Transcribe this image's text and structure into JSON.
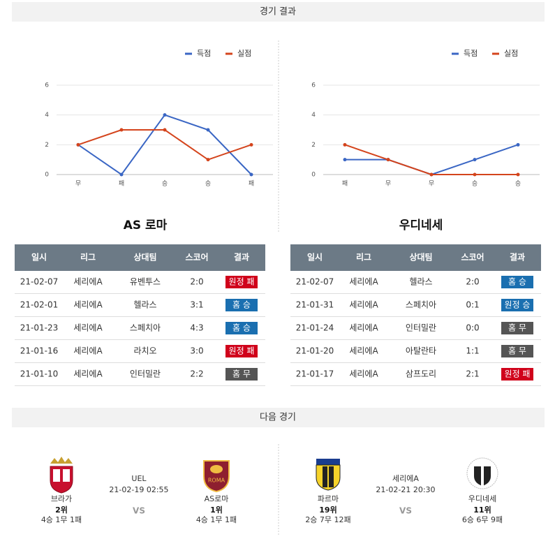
{
  "header": {
    "results_title": "경기 결과",
    "next_title": "다음 경기"
  },
  "chart_data": [
    {
      "type": "line",
      "categories": [
        "무",
        "패",
        "승",
        "승",
        "패"
      ],
      "series": [
        {
          "name": "득점",
          "color": "#3a66c4",
          "values": [
            2,
            0,
            4,
            3,
            0
          ]
        },
        {
          "name": "실점",
          "color": "#d4441c",
          "values": [
            2,
            3,
            3,
            1,
            2
          ]
        }
      ],
      "ylim": [
        0,
        6
      ],
      "yticks": [
        0,
        2,
        4,
        6
      ],
      "grid": true,
      "legend": "top-right"
    },
    {
      "type": "line",
      "categories": [
        "패",
        "무",
        "무",
        "승",
        "승"
      ],
      "series": [
        {
          "name": "득점",
          "color": "#3a66c4",
          "values": [
            1,
            1,
            0,
            1,
            2
          ]
        },
        {
          "name": "실점",
          "color": "#d4441c",
          "values": [
            2,
            1,
            0,
            0,
            0
          ]
        }
      ],
      "ylim": [
        0,
        6
      ],
      "yticks": [
        0,
        2,
        4,
        6
      ],
      "grid": true,
      "legend": "top-right"
    }
  ],
  "teams": [
    {
      "name": "AS 로마",
      "table": {
        "columns": [
          "일시",
          "리그",
          "상대팀",
          "스코어",
          "결과"
        ],
        "rows": [
          [
            "21-02-07",
            "세리에A",
            "유벤투스",
            "2:0",
            "원정 패"
          ],
          [
            "21-02-01",
            "세리에A",
            "헬라스",
            "3:1",
            "홈 승"
          ],
          [
            "21-01-23",
            "세리에A",
            "스페치아",
            "4:3",
            "홈 승"
          ],
          [
            "21-01-16",
            "세리에A",
            "라치오",
            "3:0",
            "원정 패"
          ],
          [
            "21-01-10",
            "세리에A",
            "인터밀란",
            "2:2",
            "홈 무"
          ]
        ],
        "badge_colors": [
          "#d0021b",
          "#1a6fb0",
          "#1a6fb0",
          "#d0021b",
          "#555555"
        ]
      }
    },
    {
      "name": "우디네세",
      "table": {
        "columns": [
          "일시",
          "리그",
          "상대팀",
          "스코어",
          "결과"
        ],
        "rows": [
          [
            "21-02-07",
            "세리에A",
            "헬라스",
            "2:0",
            "홈 승"
          ],
          [
            "21-01-31",
            "세리에A",
            "스페치아",
            "0:1",
            "원정 승"
          ],
          [
            "21-01-24",
            "세리에A",
            "인터밀란",
            "0:0",
            "홈 무"
          ],
          [
            "21-01-20",
            "세리에A",
            "아탈란타",
            "1:1",
            "홈 무"
          ],
          [
            "21-01-17",
            "세리에A",
            "삼프도리",
            "2:1",
            "원정 패"
          ]
        ],
        "badge_colors": [
          "#1a6fb0",
          "#1a6fb0",
          "#555555",
          "#555555",
          "#d0021b"
        ]
      }
    }
  ],
  "matches": [
    {
      "league": "UEL",
      "datetime": "21-02-19 02:55",
      "vs": "VS",
      "home": {
        "name": "브라가",
        "rank": "2위",
        "record": "4승 1무 1패"
      },
      "away": {
        "name": "AS로마",
        "rank": "1위",
        "record": "4승 1무 1패"
      }
    },
    {
      "league": "세리에A",
      "datetime": "21-02-21 20:30",
      "vs": "VS",
      "home": {
        "name": "파르마",
        "rank": "19위",
        "record": "2승 7무 12패"
      },
      "away": {
        "name": "우디네세",
        "rank": "11위",
        "record": "6승 6무 9패"
      }
    }
  ]
}
